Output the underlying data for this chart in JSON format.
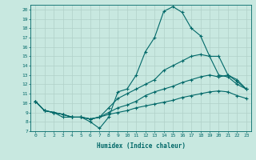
{
  "xlabel": "Humidex (Indice chaleur)",
  "background_color": "#c8e8e0",
  "grid_color": "#b0d0c8",
  "line_color": "#006868",
  "xlim": [
    -0.5,
    23.5
  ],
  "ylim": [
    7,
    20.5
  ],
  "xticks": [
    0,
    1,
    2,
    3,
    4,
    5,
    6,
    7,
    8,
    9,
    10,
    11,
    12,
    13,
    14,
    15,
    16,
    17,
    18,
    19,
    20,
    21,
    22,
    23
  ],
  "yticks": [
    7,
    8,
    9,
    10,
    11,
    12,
    13,
    14,
    15,
    16,
    17,
    18,
    19,
    20
  ],
  "lines": [
    {
      "x": [
        0,
        1,
        2,
        3,
        4,
        5,
        6,
        7,
        8,
        9,
        10,
        11,
        12,
        13,
        14,
        15,
        16,
        17,
        18,
        19,
        20,
        21,
        22,
        23
      ],
      "y": [
        10.2,
        9.2,
        9.0,
        8.5,
        8.5,
        8.5,
        8.0,
        7.3,
        8.5,
        11.2,
        11.5,
        13.0,
        15.5,
        17.0,
        19.8,
        20.3,
        19.7,
        18.0,
        17.2,
        15.0,
        15.0,
        13.0,
        12.5,
        11.5
      ]
    },
    {
      "x": [
        0,
        1,
        2,
        3,
        4,
        5,
        6,
        7,
        8,
        9,
        10,
        11,
        12,
        13,
        14,
        15,
        16,
        17,
        18,
        19,
        20,
        21,
        22,
        23
      ],
      "y": [
        10.2,
        9.2,
        9.0,
        8.8,
        8.5,
        8.5,
        8.3,
        8.5,
        9.5,
        10.5,
        11.0,
        11.5,
        12.0,
        12.5,
        13.5,
        14.0,
        14.5,
        15.0,
        15.2,
        15.0,
        13.0,
        12.8,
        12.0,
        11.5
      ]
    },
    {
      "x": [
        0,
        1,
        2,
        3,
        4,
        5,
        6,
        7,
        8,
        9,
        10,
        11,
        12,
        13,
        14,
        15,
        16,
        17,
        18,
        19,
        20,
        21,
        22,
        23
      ],
      "y": [
        10.2,
        9.2,
        9.0,
        8.8,
        8.5,
        8.5,
        8.3,
        8.5,
        9.0,
        9.5,
        9.8,
        10.2,
        10.8,
        11.2,
        11.5,
        11.8,
        12.2,
        12.5,
        12.8,
        13.0,
        12.8,
        13.0,
        12.3,
        11.5
      ]
    },
    {
      "x": [
        0,
        1,
        2,
        3,
        4,
        5,
        6,
        7,
        8,
        9,
        10,
        11,
        12,
        13,
        14,
        15,
        16,
        17,
        18,
        19,
        20,
        21,
        22,
        23
      ],
      "y": [
        10.2,
        9.2,
        9.0,
        8.8,
        8.5,
        8.5,
        8.3,
        8.5,
        8.8,
        9.0,
        9.2,
        9.5,
        9.7,
        9.9,
        10.1,
        10.3,
        10.6,
        10.8,
        11.0,
        11.2,
        11.3,
        11.2,
        10.8,
        10.5
      ]
    }
  ]
}
